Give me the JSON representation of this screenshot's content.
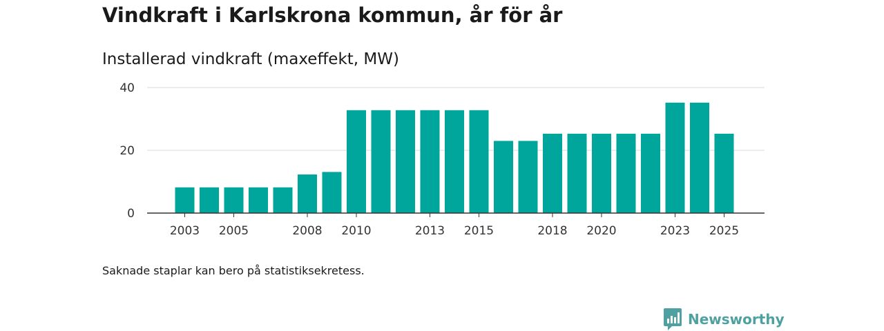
{
  "header": {
    "title": "Vindkraft i Karlskrona kommun, år för år",
    "subtitle": "Installerad vindkraft (maxeffekt, MW)"
  },
  "footer": {
    "note": "Saknade staplar kan bero på statistiksekretess.",
    "brand": "Newsworthy"
  },
  "colors": {
    "bar": "#00a59b",
    "grid": "#d9d9d9",
    "axis": "#333333",
    "brand": "#4fa1a1"
  },
  "chart_data": {
    "type": "bar",
    "title": "Vindkraft i Karlskrona kommun, år för år",
    "subtitle": "Installerad vindkraft (maxeffekt, MW)",
    "xlabel": "",
    "ylabel": "Installerad vindkraft (maxeffekt, MW)",
    "ylim": [
      0,
      40
    ],
    "yticks": [
      0,
      20,
      40
    ],
    "grid": true,
    "categories": [
      "2003",
      "2004",
      "2005",
      "2006",
      "2007",
      "2008",
      "2009",
      "2010",
      "2011",
      "2012",
      "2013",
      "2014",
      "2015",
      "2016",
      "2017",
      "2018",
      "2019",
      "2020",
      "2021",
      "2022",
      "2023",
      "2024",
      "2025"
    ],
    "values": [
      8.2,
      8.2,
      8.2,
      8.2,
      8.2,
      12.3,
      13.1,
      32.8,
      32.8,
      32.8,
      32.8,
      32.8,
      32.8,
      23.0,
      23.0,
      25.3,
      25.3,
      25.3,
      25.3,
      25.3,
      35.2,
      35.2,
      25.3
    ],
    "xtick_labels": [
      "2003",
      "2005",
      "2008",
      "2010",
      "2013",
      "2015",
      "2018",
      "2020",
      "2023",
      "2025"
    ]
  }
}
